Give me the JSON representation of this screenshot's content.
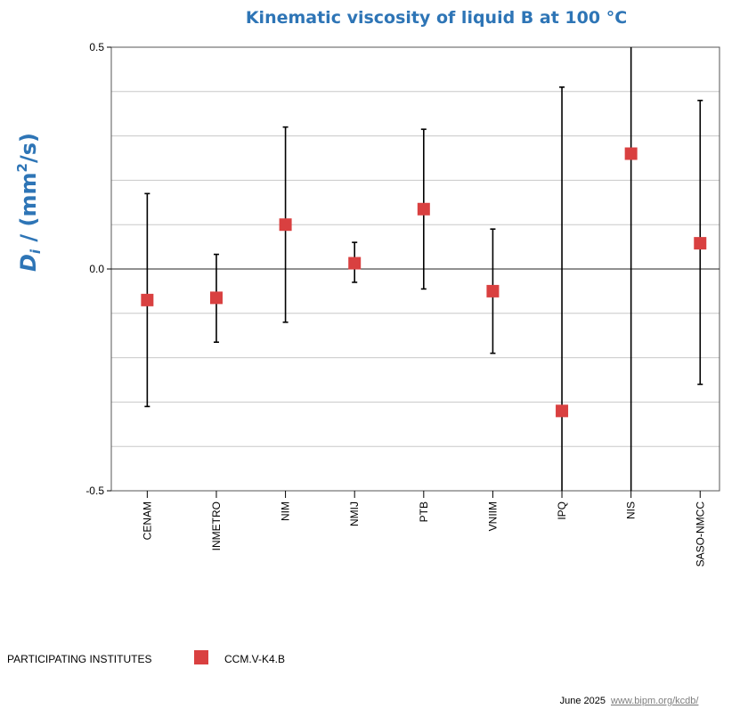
{
  "chart_data": {
    "type": "scatter",
    "title": "Kinematic viscosity of liquid B at 100 °C",
    "ylabel": {
      "symbol": "D",
      "subscript": "i",
      "unit_prefix": " / (mm",
      "superscript": "2",
      "unit_suffix": "/s)"
    },
    "ylim": [
      -0.5,
      0.5
    ],
    "yticks": [
      "0.5",
      "0.0",
      "-0.5"
    ],
    "ytick_values": [
      0.5,
      0.0,
      -0.5
    ],
    "minor_grid_step": 0.1,
    "grid": true,
    "categories": [
      "CENAM",
      "INMETRO",
      "NIM",
      "NMIJ",
      "PTB",
      "VNIIM",
      "IPQ",
      "NIS",
      "SASO-NMCC"
    ],
    "series": [
      {
        "name": "CCM.V-K4.B",
        "color": "#d94040",
        "marker": "square",
        "values": [
          -0.07,
          -0.065,
          0.1,
          0.013,
          0.135,
          -0.05,
          -0.32,
          0.26,
          0.058
        ],
        "error_low": [
          -0.31,
          -0.165,
          -0.12,
          -0.03,
          -0.045,
          -0.19,
          -0.52,
          -0.52,
          -0.26
        ],
        "error_high": [
          0.17,
          0.033,
          0.32,
          0.06,
          0.315,
          0.09,
          0.41,
          0.52,
          0.38
        ]
      }
    ]
  },
  "legend": {
    "heading": "PARTICIPATING INSTITUTES",
    "entry": "CCM.V-K4.B"
  },
  "footer": {
    "date": "June 2025",
    "link": "www.bipm.org/kcdb/"
  }
}
